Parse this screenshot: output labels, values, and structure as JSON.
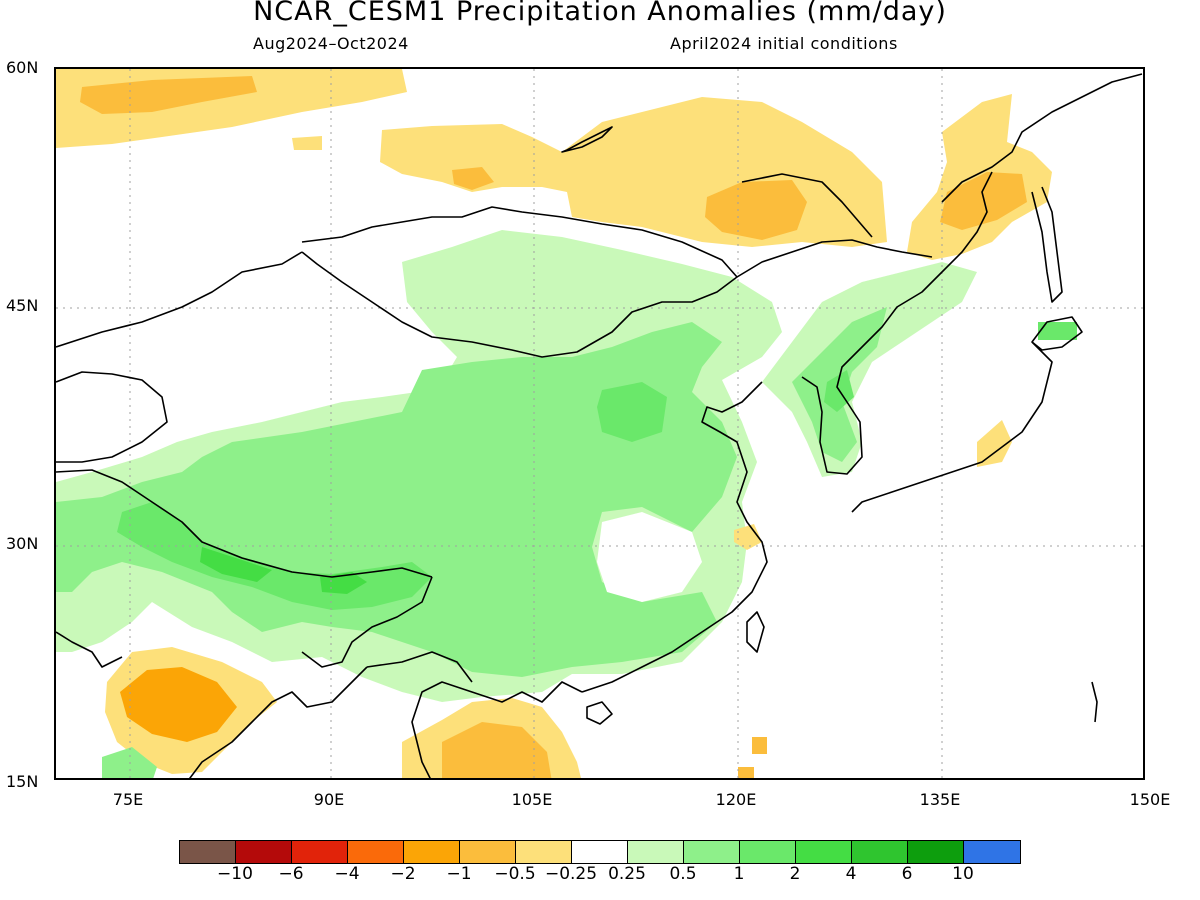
{
  "title": "NCAR_CESM1 Precipitation Anomalies (mm/day)",
  "subtitle_left": "Aug2024–Oct2024",
  "subtitle_right": "April2024 initial conditions",
  "lat_labels": [
    "60N",
    "45N",
    "30N",
    "15N"
  ],
  "lon_labels": [
    "75E",
    "90E",
    "105E",
    "120E",
    "135E",
    "150E"
  ],
  "colorbar": {
    "colors": [
      "#7a5548",
      "#b40a0a",
      "#e1230a",
      "#fa6a0a",
      "#fba506",
      "#fbbd3c",
      "#fde07a",
      "#ffffff",
      "#c9f9b9",
      "#8ef08a",
      "#6ae86a",
      "#44dd44",
      "#2fc52f",
      "#0d9e0d",
      "#2f74e6"
    ],
    "tick_labels": [
      "−10",
      "−6",
      "−4",
      "−2",
      "−1",
      "−0.5",
      "−0.25",
      "0.25",
      "0.5",
      "1",
      "2",
      "4",
      "6",
      "10"
    ]
  }
}
